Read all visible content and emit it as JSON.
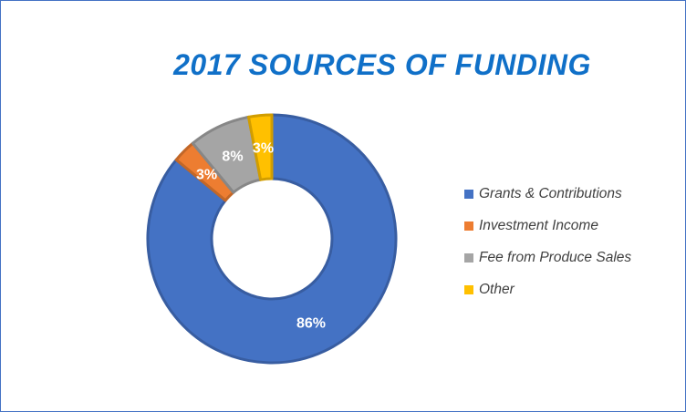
{
  "chart_data": {
    "type": "doughnut",
    "title": "2017 SOURCES OF FUNDING",
    "categories": [
      "Grants & Contributions",
      "Investment Income",
      "Fee from Produce Sales",
      "Other"
    ],
    "values": [
      86,
      3,
      8,
      3
    ],
    "data_labels": [
      "86%",
      "3%",
      "8%",
      "3%"
    ],
    "colors": [
      "#4472c4",
      "#ed7d31",
      "#a5a5a5",
      "#ffc000"
    ],
    "legend_position": "right"
  }
}
